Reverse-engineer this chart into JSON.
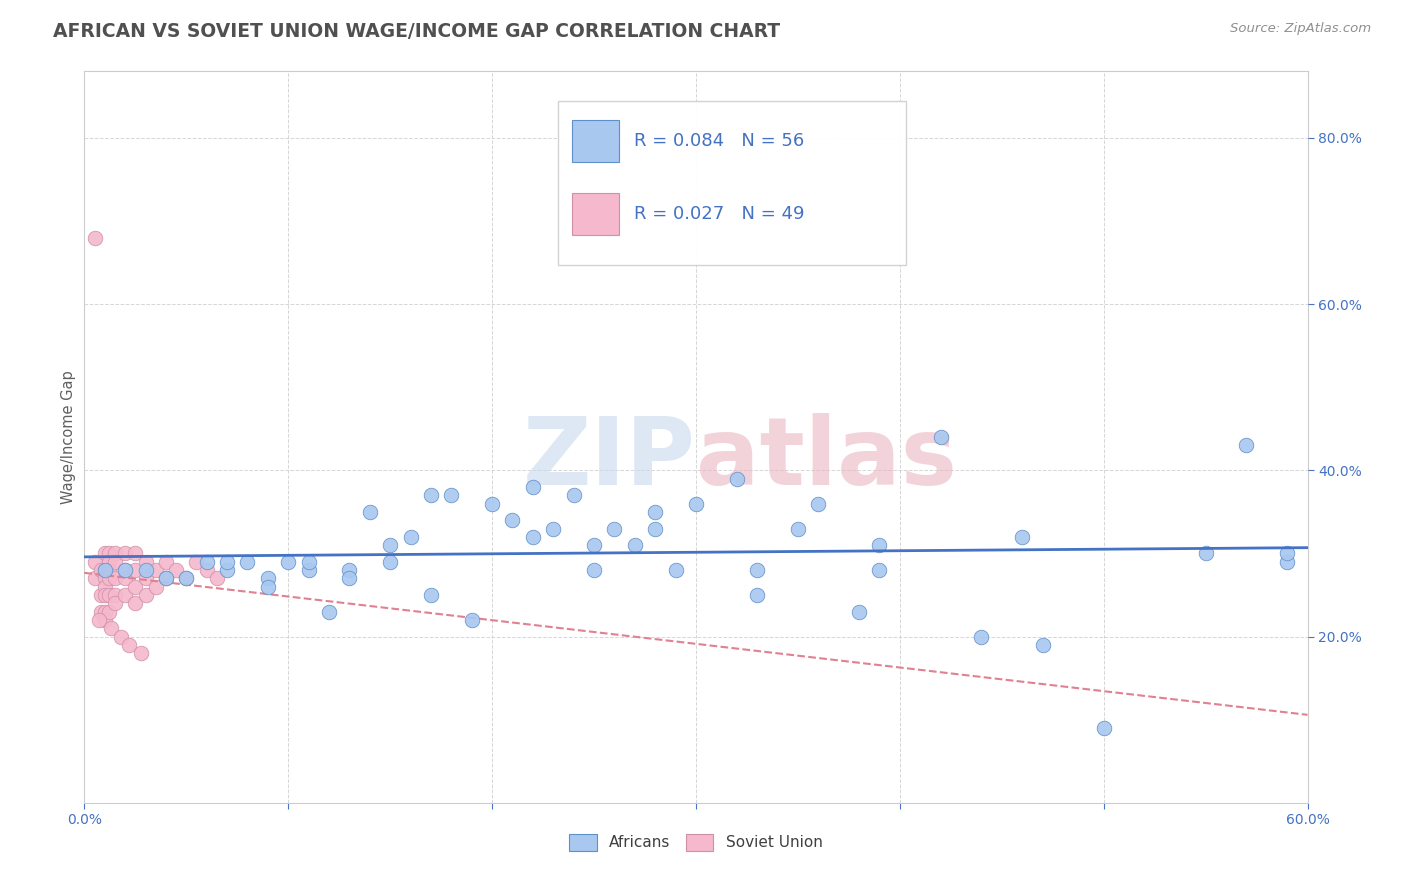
{
  "title": "AFRICAN VS SOVIET UNION WAGE/INCOME GAP CORRELATION CHART",
  "source": "Source: ZipAtlas.com",
  "ylabel": "Wage/Income Gap",
  "r_african": 0.084,
  "n_african": 56,
  "r_soviet": 0.027,
  "n_soviet": 49,
  "african_color": "#A8C8F0",
  "soviet_color": "#F5B8CC",
  "trend_african_color": "#4472C4",
  "trend_soviet_color": "#E08090",
  "bg_color": "#FFFFFF",
  "grid_color": "#CCCCCC",
  "axis_label_color": "#4472C4",
  "title_color": "#505050",
  "x_min": 0.0,
  "x_max": 0.6,
  "y_min": 0.0,
  "y_max": 0.88,
  "africans_x": [
    0.01,
    0.02,
    0.03,
    0.04,
    0.05,
    0.06,
    0.07,
    0.08,
    0.09,
    0.1,
    0.11,
    0.12,
    0.13,
    0.14,
    0.15,
    0.16,
    0.17,
    0.18,
    0.19,
    0.2,
    0.21,
    0.22,
    0.23,
    0.24,
    0.25,
    0.26,
    0.27,
    0.28,
    0.29,
    0.3,
    0.32,
    0.33,
    0.35,
    0.36,
    0.38,
    0.39,
    0.42,
    0.44,
    0.46,
    0.47,
    0.5,
    0.55,
    0.57,
    0.59,
    0.07,
    0.09,
    0.11,
    0.13,
    0.15,
    0.17,
    0.22,
    0.25,
    0.28,
    0.33,
    0.39,
    0.59
  ],
  "africans_y": [
    0.28,
    0.28,
    0.28,
    0.27,
    0.27,
    0.29,
    0.28,
    0.29,
    0.27,
    0.29,
    0.28,
    0.23,
    0.28,
    0.35,
    0.31,
    0.32,
    0.37,
    0.37,
    0.22,
    0.36,
    0.34,
    0.38,
    0.33,
    0.37,
    0.31,
    0.33,
    0.31,
    0.35,
    0.28,
    0.36,
    0.39,
    0.28,
    0.33,
    0.36,
    0.23,
    0.31,
    0.44,
    0.2,
    0.32,
    0.19,
    0.09,
    0.3,
    0.43,
    0.29,
    0.29,
    0.26,
    0.29,
    0.27,
    0.29,
    0.25,
    0.32,
    0.28,
    0.33,
    0.25,
    0.28,
    0.3
  ],
  "soviet_x": [
    0.005,
    0.005,
    0.008,
    0.008,
    0.008,
    0.01,
    0.01,
    0.01,
    0.01,
    0.01,
    0.01,
    0.01,
    0.012,
    0.012,
    0.012,
    0.012,
    0.012,
    0.012,
    0.015,
    0.015,
    0.015,
    0.015,
    0.015,
    0.02,
    0.02,
    0.02,
    0.02,
    0.025,
    0.025,
    0.025,
    0.025,
    0.03,
    0.03,
    0.03,
    0.035,
    0.035,
    0.04,
    0.04,
    0.045,
    0.05,
    0.055,
    0.06,
    0.065,
    0.007,
    0.013,
    0.018,
    0.022,
    0.028,
    0.005
  ],
  "soviet_y": [
    0.29,
    0.27,
    0.28,
    0.25,
    0.23,
    0.3,
    0.28,
    0.27,
    0.26,
    0.25,
    0.23,
    0.22,
    0.3,
    0.29,
    0.28,
    0.27,
    0.25,
    0.23,
    0.3,
    0.29,
    0.27,
    0.25,
    0.24,
    0.3,
    0.28,
    0.27,
    0.25,
    0.3,
    0.28,
    0.26,
    0.24,
    0.29,
    0.27,
    0.25,
    0.28,
    0.26,
    0.29,
    0.27,
    0.28,
    0.27,
    0.29,
    0.28,
    0.27,
    0.22,
    0.21,
    0.2,
    0.19,
    0.18,
    0.68
  ]
}
